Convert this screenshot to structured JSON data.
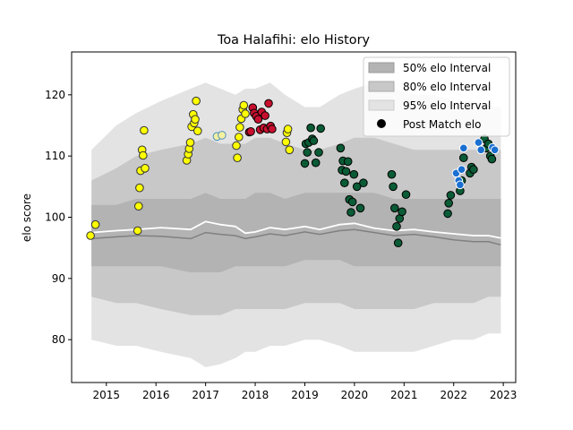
{
  "chart_data": {
    "type": "scatter",
    "title": "Toa Halafihi: elo History",
    "xlabel": "",
    "ylabel": "elo score",
    "xlim": [
      2014.3,
      2023.25
    ],
    "ylim": [
      73,
      127
    ],
    "x_ticks": [
      2015,
      2016,
      2017,
      2018,
      2019,
      2020,
      2021,
      2022,
      2023
    ],
    "y_ticks": [
      80,
      90,
      100,
      110,
      120
    ],
    "grid": false,
    "legend_position": "top-right",
    "legend": [
      {
        "label": "50% elo Interval",
        "color": "#b3b3b3"
      },
      {
        "label": "80% elo Interval",
        "color": "#c8c8c8"
      },
      {
        "label": "95% elo Interval",
        "color": "#e3e3e3"
      },
      {
        "label": "Post Match elo",
        "color": "#000000"
      }
    ],
    "bands": {
      "x": [
        2014.7,
        2015.2,
        2015.6,
        2016.1,
        2016.7,
        2017.0,
        2017.3,
        2017.6,
        2017.8,
        2018.0,
        2018.3,
        2018.6,
        2019.0,
        2019.3,
        2019.7,
        2020.0,
        2020.4,
        2020.8,
        2021.2,
        2021.6,
        2022.0,
        2022.4,
        2022.7,
        2022.95
      ],
      "p95_hi": [
        111,
        115,
        117,
        119,
        121,
        122,
        121,
        120,
        121,
        121,
        122,
        120,
        118,
        118,
        120,
        121,
        122,
        121,
        120,
        120,
        119,
        119,
        118,
        118
      ],
      "p95_lo": [
        80,
        79,
        79,
        78,
        77,
        75.5,
        76,
        77,
        78,
        78,
        79,
        79,
        80,
        80,
        79,
        78,
        78,
        78,
        78,
        79,
        80,
        80,
        81,
        81
      ],
      "p80_hi": [
        106,
        108,
        110,
        111,
        112,
        113,
        112,
        112,
        112,
        113,
        113,
        112,
        111,
        111,
        112,
        113,
        113,
        112,
        111,
        111,
        111,
        111,
        111,
        111
      ],
      "p80_lo": [
        87,
        86,
        86,
        85,
        84,
        84,
        84,
        85,
        85,
        85,
        85,
        85,
        86,
        86,
        86,
        85,
        85,
        85,
        85,
        86,
        86,
        86,
        87,
        87
      ],
      "p50_hi": [
        102,
        102,
        103,
        103,
        103,
        104,
        103,
        103,
        103,
        104,
        104,
        103,
        104,
        104,
        104,
        104,
        104,
        103,
        103,
        103,
        103,
        103,
        103,
        103
      ],
      "p50_lo": [
        92,
        92,
        92,
        92,
        91,
        91,
        91,
        92,
        92,
        92,
        92,
        92,
        93,
        93,
        93,
        92,
        92,
        92,
        92,
        92,
        92,
        92,
        92,
        92
      ],
      "median": [
        97.5,
        97.8,
        98.0,
        98.3,
        98.0,
        99.3,
        98.8,
        98.5,
        97.4,
        97.6,
        98.3,
        98.0,
        98.5,
        98.0,
        98.8,
        99.0,
        98.2,
        97.8,
        98.0,
        97.6,
        97.3,
        97.0,
        97.0,
        96.6
      ],
      "lower_line": [
        96.5,
        96.8,
        97.0,
        96.9,
        96.5,
        97.5,
        97.2,
        97.0,
        96.5,
        96.8,
        97.3,
        97.0,
        97.6,
        97.2,
        97.8,
        98.0,
        97.5,
        97.0,
        97.2,
        96.8,
        96.3,
        96.0,
        96.0,
        95.5
      ]
    },
    "series": [
      {
        "marker_color": "#ffff00",
        "edge_color": "#333333",
        "points": [
          [
            2014.68,
            97.0
          ],
          [
            2014.78,
            98.8
          ],
          [
            2015.63,
            97.8
          ],
          [
            2015.65,
            101.8
          ],
          [
            2015.67,
            104.8
          ],
          [
            2015.69,
            107.6
          ],
          [
            2015.72,
            111.0
          ],
          [
            2015.74,
            110.1
          ],
          [
            2015.76,
            114.2
          ],
          [
            2015.78,
            108.0
          ],
          [
            2016.62,
            109.3
          ],
          [
            2016.65,
            110.3
          ],
          [
            2016.67,
            111.2
          ],
          [
            2016.69,
            112.2
          ],
          [
            2016.72,
            114.8
          ],
          [
            2016.75,
            116.8
          ],
          [
            2016.77,
            115.4
          ],
          [
            2016.79,
            116.0
          ],
          [
            2016.81,
            119.0
          ],
          [
            2016.84,
            114.1
          ],
          [
            2017.62,
            111.7
          ],
          [
            2017.64,
            109.7
          ],
          [
            2017.67,
            113.1
          ],
          [
            2017.69,
            114.7
          ],
          [
            2017.72,
            116.1
          ],
          [
            2017.75,
            117.6
          ],
          [
            2017.77,
            118.3
          ],
          [
            2017.8,
            116.9
          ],
          [
            2018.62,
            112.3
          ],
          [
            2018.64,
            113.8
          ],
          [
            2018.66,
            114.4
          ],
          [
            2018.69,
            111.0
          ]
        ]
      },
      {
        "marker_color": "#f5f0a0",
        "edge_color": "#4a90c0",
        "points": [
          [
            2017.23,
            113.2
          ],
          [
            2017.33,
            113.4
          ]
        ]
      },
      {
        "marker_color": "#c8102e",
        "edge_color": "#000000",
        "points": [
          [
            2017.88,
            113.9
          ],
          [
            2017.91,
            114.0
          ],
          [
            2017.95,
            117.9
          ],
          [
            2017.98,
            117.0
          ],
          [
            2018.02,
            116.5
          ],
          [
            2018.06,
            116.0
          ],
          [
            2018.1,
            114.3
          ],
          [
            2018.13,
            117.2
          ],
          [
            2018.17,
            114.6
          ],
          [
            2018.2,
            116.6
          ],
          [
            2018.24,
            114.4
          ],
          [
            2018.27,
            118.6
          ],
          [
            2018.31,
            114.9
          ],
          [
            2018.34,
            114.4
          ]
        ]
      },
      {
        "marker_color": "#0a5c36",
        "edge_color": "#000000",
        "points": [
          [
            2019.0,
            108.8
          ],
          [
            2019.02,
            112.0
          ],
          [
            2019.05,
            110.6
          ],
          [
            2019.08,
            112.2
          ],
          [
            2019.12,
            114.6
          ],
          [
            2019.15,
            112.8
          ],
          [
            2019.18,
            112.5
          ],
          [
            2019.22,
            108.9
          ],
          [
            2019.28,
            110.6
          ],
          [
            2019.32,
            114.5
          ],
          [
            2019.72,
            111.3
          ],
          [
            2019.75,
            107.7
          ],
          [
            2019.77,
            109.2
          ],
          [
            2019.8,
            105.6
          ],
          [
            2019.83,
            107.5
          ],
          [
            2019.87,
            109.1
          ],
          [
            2019.9,
            102.9
          ],
          [
            2019.93,
            100.8
          ],
          [
            2019.96,
            102.5
          ],
          [
            2019.99,
            107.0
          ],
          [
            2020.05,
            105.0
          ],
          [
            2020.12,
            101.5
          ],
          [
            2020.18,
            105.6
          ],
          [
            2020.75,
            107.0
          ],
          [
            2020.78,
            105.0
          ],
          [
            2020.81,
            101.5
          ],
          [
            2020.85,
            98.5
          ],
          [
            2020.88,
            95.8
          ],
          [
            2020.91,
            99.8
          ],
          [
            2020.96,
            100.9
          ],
          [
            2021.04,
            103.7
          ]
        ]
      },
      {
        "marker_color": "#0a5c36",
        "edge_color": "#000000",
        "points": [
          [
            2021.88,
            100.6
          ],
          [
            2021.9,
            102.3
          ],
          [
            2021.94,
            103.6
          ],
          [
            2022.13,
            104.3
          ],
          [
            2022.16,
            106.0
          ],
          [
            2022.2,
            109.7
          ],
          [
            2022.33,
            107.2
          ],
          [
            2022.36,
            108.2
          ],
          [
            2022.4,
            107.8
          ],
          [
            2022.62,
            112.8
          ],
          [
            2022.66,
            111.3
          ],
          [
            2022.7,
            112.0
          ],
          [
            2022.74,
            110.0
          ],
          [
            2022.77,
            109.5
          ]
        ]
      },
      {
        "marker_color": "#1a6fd0",
        "edge_color": "#ffffff",
        "points": [
          [
            2022.05,
            107.2
          ],
          [
            2022.1,
            106.0
          ],
          [
            2022.13,
            105.3
          ],
          [
            2022.16,
            107.8
          ],
          [
            2022.2,
            111.3
          ],
          [
            2022.5,
            112.2
          ],
          [
            2022.55,
            111.0
          ],
          [
            2022.78,
            111.4
          ],
          [
            2022.83,
            111.0
          ]
        ]
      }
    ]
  }
}
